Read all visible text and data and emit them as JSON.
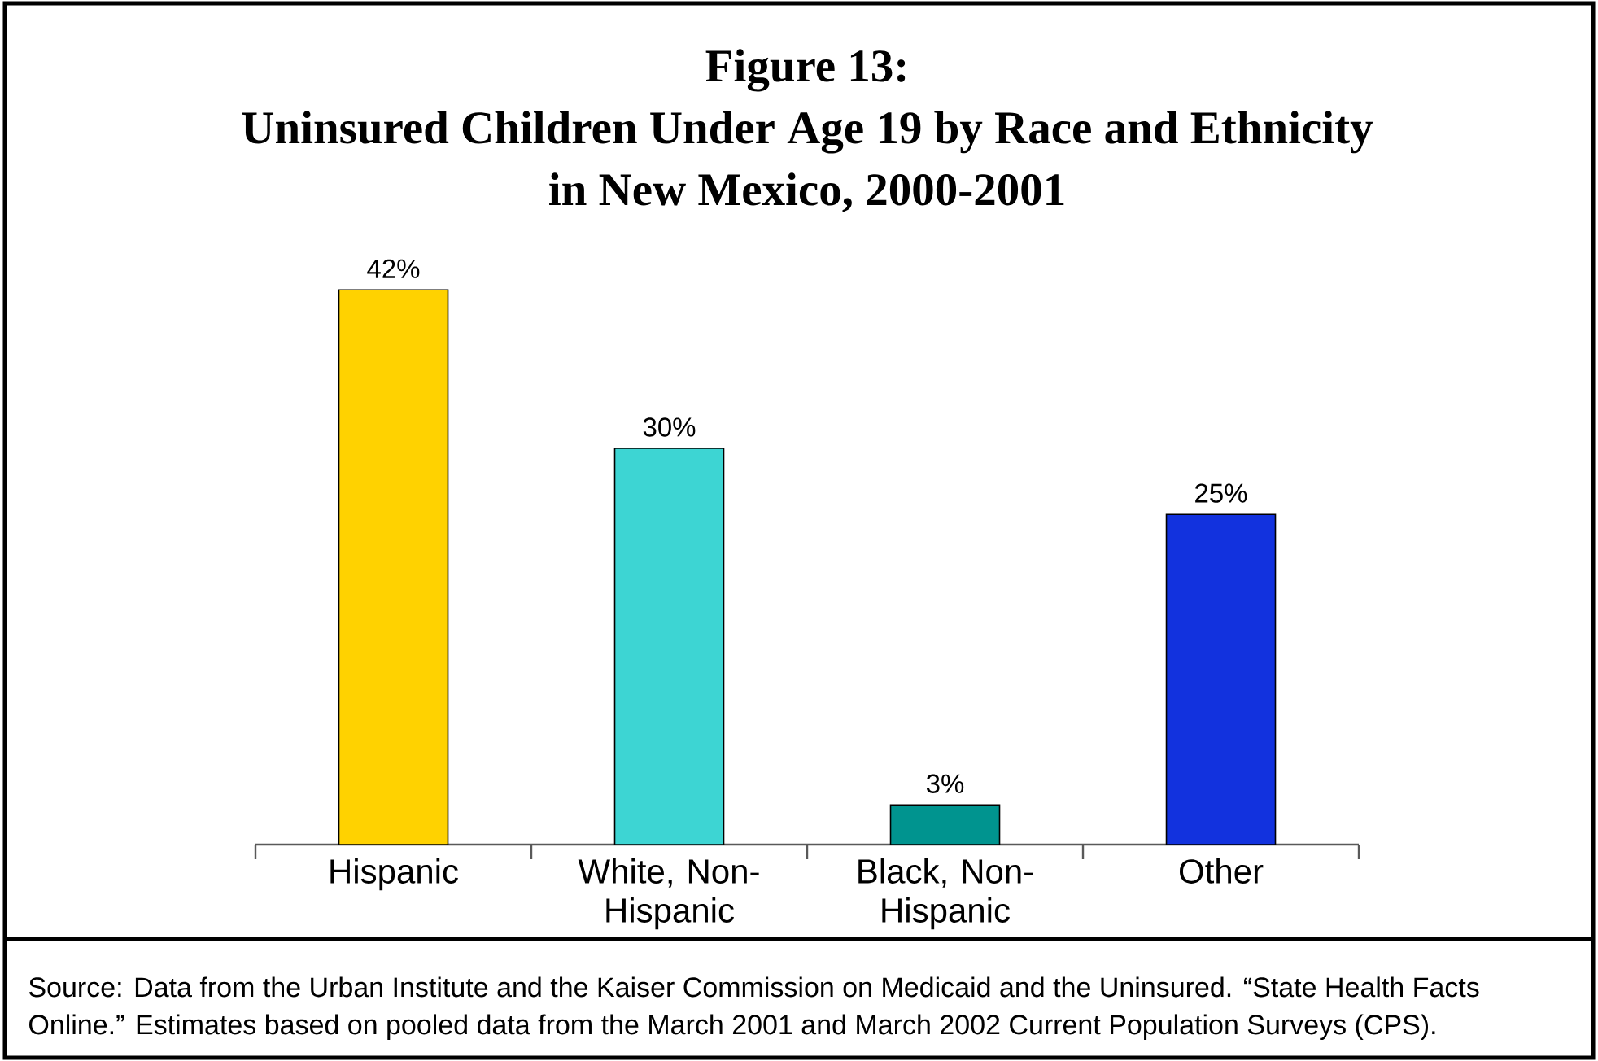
{
  "chart_data": {
    "type": "bar",
    "title": "Figure 13:",
    "subtitle": "Uninsured Children Under Age 19 by Race and Ethnicity in New Mexico, 2000-2001",
    "categories": [
      "Hispanic",
      "White, Non-Hispanic",
      "Black, Non-Hispanic",
      "Other"
    ],
    "values": [
      42,
      30,
      3,
      25
    ],
    "colors": [
      "#ffd200",
      "#3dd5d3",
      "#00948f",
      "#1232de"
    ],
    "value_labels": [
      "42%",
      "30%",
      "3%",
      "25%"
    ],
    "annotations": [
      "Source: Data from the Urban Institute and the Kaiser Commission on Medicaid and the Uninsured. “State Health Facts Online.” Estimates based on pooled data from the March 2001 and March 2002 Current Population Surveys (CPS)."
    ]
  }
}
